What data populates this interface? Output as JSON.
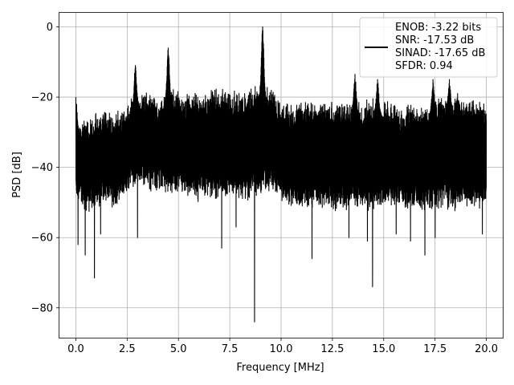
{
  "chart_data": {
    "type": "line",
    "title": "",
    "xlabel": "Frequency [MHz]",
    "ylabel": "PSD [dB]",
    "xlim": [
      -0.8,
      20.8
    ],
    "ylim": [
      -88.5,
      4
    ],
    "xticks": [
      0.0,
      2.5,
      5.0,
      7.5,
      10.0,
      12.5,
      15.0,
      17.5,
      20.0
    ],
    "xtick_labels": [
      "0.0",
      "2.5",
      "5.0",
      "7.5",
      "10.0",
      "12.5",
      "15.0",
      "17.5",
      "20.0"
    ],
    "yticks": [
      0,
      -20,
      -40,
      -60,
      -80
    ],
    "ytick_labels": [
      "0",
      "−20",
      "−40",
      "−60",
      "−80"
    ],
    "grid": true,
    "legend_position": "top-right",
    "legend_lines": [
      "ENOB: -3.22 bits",
      "SNR: -17.53 dB",
      "SINAD: -17.65 dB",
      "SFDR: 0.94"
    ],
    "series": [
      {
        "color": "#000000",
        "band_floor": [
          [
            0,
            -47
          ],
          [
            0.5,
            -50
          ],
          [
            1,
            -48
          ],
          [
            1.5,
            -47
          ],
          [
            2,
            -48
          ],
          [
            2.5,
            -44
          ],
          [
            3,
            -42
          ],
          [
            3.5,
            -43
          ],
          [
            4,
            -44
          ],
          [
            4.5,
            -44
          ],
          [
            5,
            -44
          ],
          [
            5.5,
            -46
          ],
          [
            6,
            -46
          ],
          [
            6.5,
            -45
          ],
          [
            7,
            -46
          ],
          [
            7.5,
            -45
          ],
          [
            8,
            -46
          ],
          [
            8.5,
            -46
          ],
          [
            9,
            -44
          ],
          [
            9.5,
            -44
          ],
          [
            10,
            -46
          ],
          [
            10.5,
            -48
          ],
          [
            11,
            -48
          ],
          [
            11.5,
            -48
          ],
          [
            12,
            -48
          ],
          [
            12.5,
            -49
          ],
          [
            13,
            -49
          ],
          [
            13.5,
            -48
          ],
          [
            14,
            -49
          ],
          [
            14.5,
            -49
          ],
          [
            15,
            -48
          ],
          [
            15.5,
            -48
          ],
          [
            16,
            -48
          ],
          [
            16.5,
            -49
          ],
          [
            17,
            -49
          ],
          [
            17.5,
            -48
          ],
          [
            18,
            -48
          ],
          [
            18.5,
            -49
          ],
          [
            19,
            -48
          ],
          [
            19.5,
            -48
          ],
          [
            20,
            -48
          ]
        ],
        "band_ceiling": [
          [
            0,
            -30
          ],
          [
            0.5,
            -29
          ],
          [
            1,
            -28
          ],
          [
            1.5,
            -28
          ],
          [
            2,
            -28
          ],
          [
            2.5,
            -25
          ],
          [
            3,
            -22
          ],
          [
            3.5,
            -22
          ],
          [
            4,
            -23
          ],
          [
            4.5,
            -21
          ],
          [
            5,
            -22
          ],
          [
            5.5,
            -22
          ],
          [
            6,
            -22
          ],
          [
            6.5,
            -22
          ],
          [
            7,
            -21
          ],
          [
            7.5,
            -22
          ],
          [
            8,
            -22
          ],
          [
            8.5,
            -21
          ],
          [
            9,
            -20
          ],
          [
            9.5,
            -21
          ],
          [
            10,
            -24
          ],
          [
            10.5,
            -25
          ],
          [
            11,
            -25
          ],
          [
            11.5,
            -24
          ],
          [
            12,
            -25
          ],
          [
            12.5,
            -24
          ],
          [
            13,
            -25
          ],
          [
            13.5,
            -24
          ],
          [
            14,
            -25
          ],
          [
            14.5,
            -24
          ],
          [
            15,
            -25
          ],
          [
            15.5,
            -25
          ],
          [
            16,
            -26
          ],
          [
            16.5,
            -26
          ],
          [
            17,
            -26
          ],
          [
            17.5,
            -24
          ],
          [
            18,
            -23
          ],
          [
            18.5,
            -24
          ],
          [
            19,
            -24
          ],
          [
            19.5,
            -24
          ],
          [
            20,
            -25
          ]
        ],
        "peaks": [
          [
            0.0,
            -20
          ],
          [
            2.9,
            -11
          ],
          [
            4.5,
            -6
          ],
          [
            9.1,
            0
          ],
          [
            13.6,
            -13.5
          ],
          [
            14.7,
            -15
          ],
          [
            17.4,
            -15
          ],
          [
            18.2,
            -15
          ],
          [
            18.6,
            -19
          ]
        ],
        "dips": [
          [
            0.1,
            -62
          ],
          [
            0.45,
            -65
          ],
          [
            0.9,
            -71.5
          ],
          [
            1.2,
            -59
          ],
          [
            3.0,
            -60
          ],
          [
            7.1,
            -63
          ],
          [
            7.8,
            -57
          ],
          [
            8.7,
            -84
          ],
          [
            11.5,
            -66
          ],
          [
            13.3,
            -60
          ],
          [
            14.2,
            -61
          ],
          [
            14.45,
            -74
          ],
          [
            15.6,
            -59
          ],
          [
            16.3,
            -61
          ],
          [
            17.0,
            -65
          ],
          [
            17.5,
            -60
          ],
          [
            19.8,
            -59
          ]
        ]
      }
    ]
  }
}
